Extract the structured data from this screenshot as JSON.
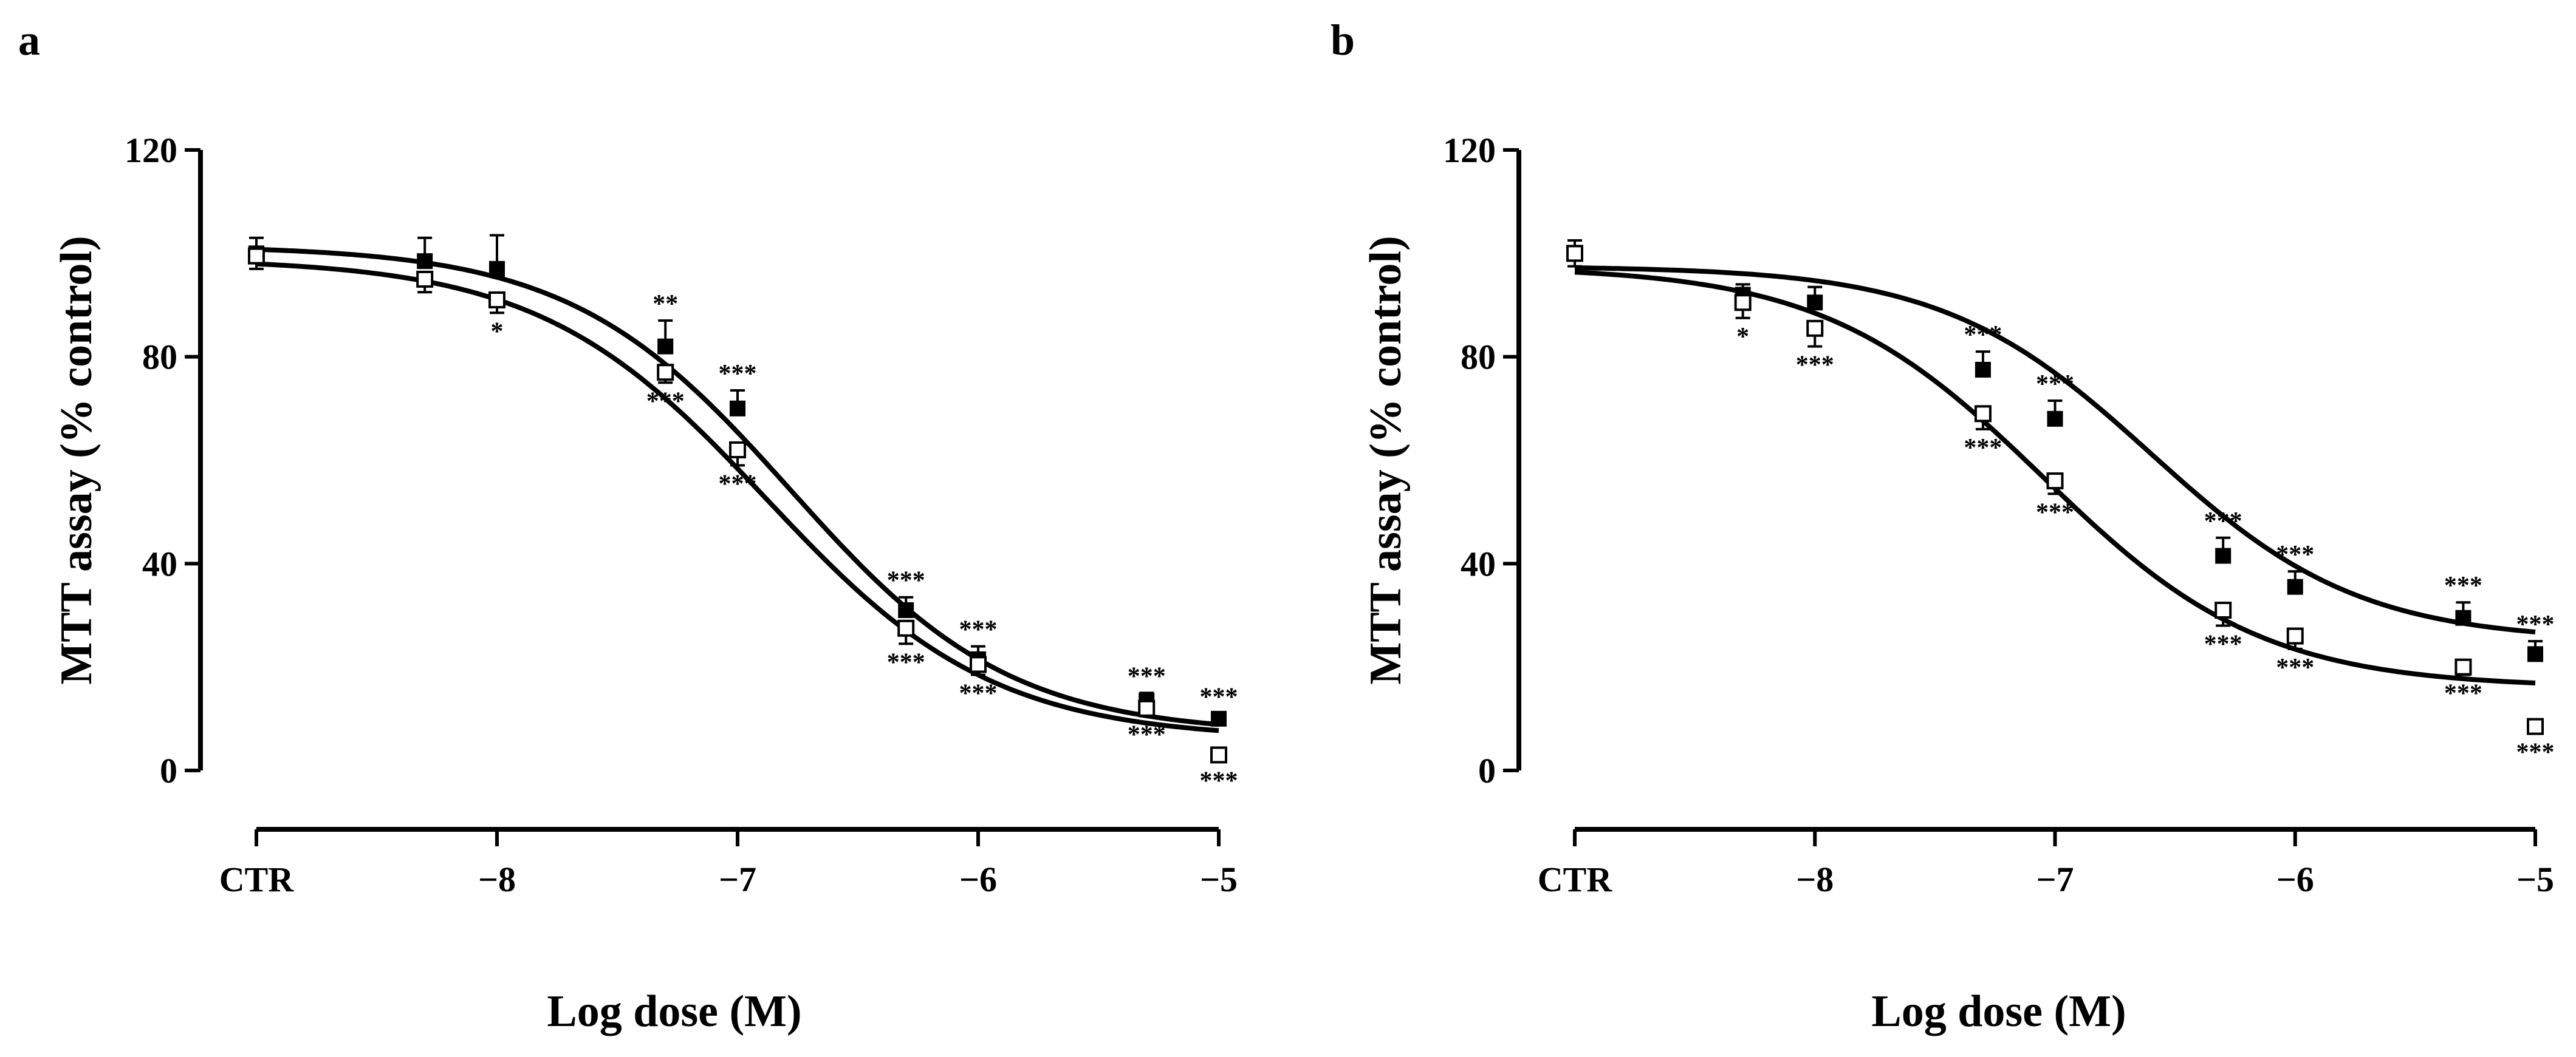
{
  "chart_data": [
    {
      "panel_label": "a",
      "type": "scatter",
      "xlabel": "Log dose (M)",
      "ylabel": "MTT assay (% control)",
      "ylim": [
        0,
        120
      ],
      "yticks": [
        "0",
        "40",
        "80",
        "120"
      ],
      "xticks": [
        "CTR",
        "−8",
        "−7",
        "−6",
        "−5"
      ],
      "xtick_values": [
        -9,
        -8,
        -7,
        -6,
        -5
      ],
      "grid": false,
      "legend": "none",
      "series": [
        {
          "marker": "filled-square",
          "x": [
            -9,
            -8.3,
            -8,
            -7.3,
            -7,
            -6.3,
            -6,
            -5.3,
            -5
          ],
          "y": [
            100,
            98.5,
            97,
            82,
            70,
            31,
            21.5,
            13.5,
            10
          ],
          "err": [
            3,
            4.5,
            6.5,
            5,
            3.5,
            2.5,
            2.5,
            1.5,
            1
          ],
          "fit": {
            "top": 101.5,
            "bottom": 7,
            "logec50": -6.78,
            "hill": 0.95
          },
          "significance": [
            "",
            "",
            "",
            "**",
            "***",
            "***",
            "***",
            "***",
            "***"
          ]
        },
        {
          "marker": "open-square",
          "x": [
            -9,
            -8.3,
            -8,
            -7.3,
            -7,
            -6.3,
            -6,
            -5.3,
            -5
          ],
          "y": [
            99.5,
            95,
            91,
            77,
            62,
            27.5,
            20.5,
            12,
            3
          ],
          "err": [
            2.5,
            2.5,
            2.5,
            2,
            3,
            3,
            2,
            1.5,
            0.8
          ],
          "fit": {
            "top": 99,
            "bottom": 6,
            "logec50": -6.88,
            "hill": 0.92
          },
          "significance": [
            "",
            "",
            "*",
            "***",
            "***",
            "***",
            "***",
            "***",
            "***"
          ]
        }
      ]
    },
    {
      "panel_label": "b",
      "type": "scatter",
      "xlabel": "Log dose (M)",
      "ylabel": "MTT assay (% control)",
      "ylim": [
        0,
        120
      ],
      "yticks": [
        "0",
        "40",
        "80",
        "120"
      ],
      "xticks": [
        "CTR",
        "−8",
        "−7",
        "−6",
        "−5"
      ],
      "xtick_values": [
        -9,
        -8,
        -7,
        -6,
        -5
      ],
      "grid": false,
      "legend": "none",
      "series": [
        {
          "marker": "filled-square",
          "x": [
            -9,
            -8.3,
            -8,
            -7.3,
            -7,
            -6.3,
            -6,
            -5.3,
            -5
          ],
          "y": [
            100,
            92,
            90.5,
            77.5,
            68,
            41.5,
            35.5,
            29.5,
            22.5
          ],
          "err": [
            2.5,
            2,
            3,
            3.5,
            3.5,
            3.5,
            3,
            3,
            2.5
          ],
          "fit": {
            "top": 97.5,
            "bottom": 25,
            "logec50": -6.6,
            "hill": 1.0
          },
          "significance": [
            "",
            "",
            "",
            "***",
            "***",
            "***",
            "***",
            "***",
            "***"
          ]
        },
        {
          "marker": "open-square",
          "x": [
            -9,
            -8.3,
            -8,
            -7.3,
            -7,
            -6.3,
            -6,
            -5.3,
            -5
          ],
          "y": [
            100,
            90.5,
            85.5,
            69,
            56,
            31,
            26,
            20,
            8.5
          ],
          "err": [
            2.5,
            3,
            3.5,
            3,
            2.5,
            3,
            2.5,
            1.5,
            1
          ],
          "fit": {
            "top": 97.5,
            "bottom": 16,
            "logec50": -7.05,
            "hill": 0.95
          },
          "significance": [
            "",
            "*",
            "***",
            "***",
            "***",
            "***",
            "***",
            "***",
            "***"
          ]
        }
      ]
    }
  ]
}
